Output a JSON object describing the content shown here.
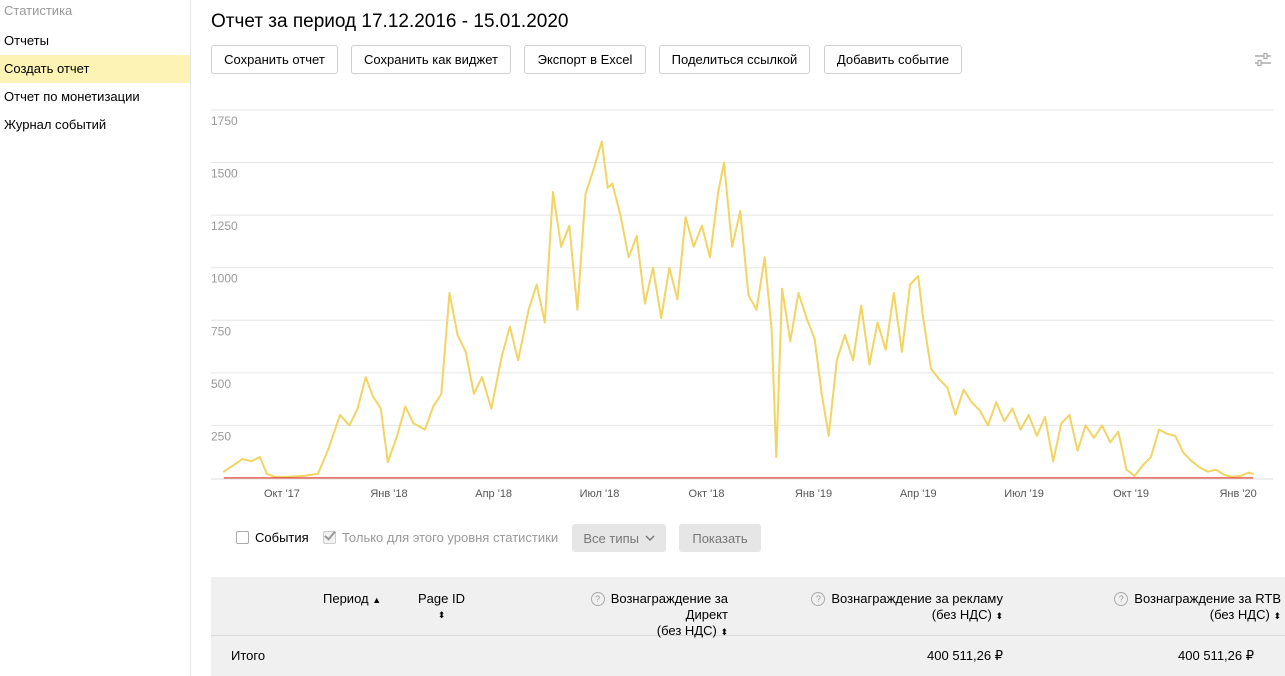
{
  "sidebar": {
    "title": "Статистика",
    "items": [
      {
        "label": "Отчеты",
        "active": false
      },
      {
        "label": "Создать отчет",
        "active": true
      },
      {
        "label": "Отчет по монетизации",
        "active": false
      },
      {
        "label": "Журнал событий",
        "active": false
      }
    ]
  },
  "page": {
    "title": "Отчет за период 17.12.2016 - 15.01.2020"
  },
  "toolbar": {
    "buttons": [
      "Сохранить отчет",
      "Сохранить как виджет",
      "Экспорт в Excel",
      "Поделиться ссылкой",
      "Добавить событие"
    ],
    "settings_icon": "sliders-icon"
  },
  "chart_data": {
    "type": "line",
    "title": "",
    "xlabel": "",
    "ylabel": "",
    "ylim": [
      0,
      1750
    ],
    "yticks": [
      250,
      500,
      750,
      1000,
      1250,
      1500,
      1750
    ],
    "xlim": [
      "2017-08-01",
      "2020-01-31"
    ],
    "xticks": [
      {
        "label": "Окт '17",
        "date": "2017-10-01"
      },
      {
        "label": "Янв '18",
        "date": "2018-01-01"
      },
      {
        "label": "Апр '18",
        "date": "2018-04-01"
      },
      {
        "label": "Июл '18",
        "date": "2018-07-01"
      },
      {
        "label": "Окт '18",
        "date": "2018-10-01"
      },
      {
        "label": "Янв '19",
        "date": "2019-01-01"
      },
      {
        "label": "Апр '19",
        "date": "2019-04-01"
      },
      {
        "label": "Июл '19",
        "date": "2019-07-01"
      },
      {
        "label": "Окт '19",
        "date": "2019-10-01"
      },
      {
        "label": "Янв '20",
        "date": "2020-01-01"
      }
    ],
    "grid": true,
    "colors": {
      "line": "#f2d463",
      "baseline": "#e34b3c",
      "grid": "#e5e5e5"
    },
    "series": [
      {
        "points": [
          [
            "2017-08-12",
            30
          ],
          [
            "2017-08-20",
            60
          ],
          [
            "2017-08-28",
            90
          ],
          [
            "2017-09-05",
            80
          ],
          [
            "2017-09-12",
            100
          ],
          [
            "2017-09-18",
            20
          ],
          [
            "2017-09-25",
            5
          ],
          [
            "2017-10-05",
            5
          ],
          [
            "2017-10-20",
            10
          ],
          [
            "2017-11-01",
            20
          ],
          [
            "2017-11-10",
            140
          ],
          [
            "2017-11-20",
            300
          ],
          [
            "2017-11-28",
            250
          ],
          [
            "2017-12-05",
            330
          ],
          [
            "2017-12-12",
            480
          ],
          [
            "2017-12-18",
            390
          ],
          [
            "2017-12-25",
            330
          ],
          [
            "2017-12-31",
            75
          ],
          [
            "2018-01-08",
            200
          ],
          [
            "2018-01-15",
            340
          ],
          [
            "2018-01-22",
            260
          ],
          [
            "2018-02-01",
            230
          ],
          [
            "2018-02-08",
            340
          ],
          [
            "2018-02-15",
            400
          ],
          [
            "2018-02-22",
            880
          ],
          [
            "2018-03-01",
            680
          ],
          [
            "2018-03-08",
            600
          ],
          [
            "2018-03-15",
            400
          ],
          [
            "2018-03-22",
            480
          ],
          [
            "2018-03-30",
            330
          ],
          [
            "2018-04-08",
            580
          ],
          [
            "2018-04-15",
            720
          ],
          [
            "2018-04-22",
            560
          ],
          [
            "2018-05-01",
            800
          ],
          [
            "2018-05-08",
            920
          ],
          [
            "2018-05-15",
            740
          ],
          [
            "2018-05-22",
            1360
          ],
          [
            "2018-05-29",
            1100
          ],
          [
            "2018-06-05",
            1200
          ],
          [
            "2018-06-12",
            800
          ],
          [
            "2018-06-19",
            1350
          ],
          [
            "2018-06-26",
            1470
          ],
          [
            "2018-07-03",
            1600
          ],
          [
            "2018-07-08",
            1380
          ],
          [
            "2018-07-12",
            1400
          ],
          [
            "2018-07-19",
            1250
          ],
          [
            "2018-07-26",
            1050
          ],
          [
            "2018-08-02",
            1150
          ],
          [
            "2018-08-09",
            830
          ],
          [
            "2018-08-16",
            1000
          ],
          [
            "2018-08-23",
            760
          ],
          [
            "2018-08-30",
            1000
          ],
          [
            "2018-09-06",
            850
          ],
          [
            "2018-09-13",
            1240
          ],
          [
            "2018-09-20",
            1100
          ],
          [
            "2018-09-27",
            1200
          ],
          [
            "2018-10-04",
            1050
          ],
          [
            "2018-10-11",
            1360
          ],
          [
            "2018-10-16",
            1500
          ],
          [
            "2018-10-23",
            1100
          ],
          [
            "2018-10-30",
            1270
          ],
          [
            "2018-11-06",
            870
          ],
          [
            "2018-11-13",
            800
          ],
          [
            "2018-11-20",
            1050
          ],
          [
            "2018-11-26",
            700
          ],
          [
            "2018-11-30",
            100
          ],
          [
            "2018-12-05",
            900
          ],
          [
            "2018-12-12",
            650
          ],
          [
            "2018-12-19",
            880
          ],
          [
            "2018-12-26",
            760
          ],
          [
            "2019-01-02",
            660
          ],
          [
            "2019-01-08",
            400
          ],
          [
            "2019-01-14",
            200
          ],
          [
            "2019-01-21",
            560
          ],
          [
            "2019-01-28",
            680
          ],
          [
            "2019-02-04",
            560
          ],
          [
            "2019-02-11",
            820
          ],
          [
            "2019-02-18",
            540
          ],
          [
            "2019-02-25",
            740
          ],
          [
            "2019-03-04",
            610
          ],
          [
            "2019-03-11",
            880
          ],
          [
            "2019-03-18",
            600
          ],
          [
            "2019-03-25",
            920
          ],
          [
            "2019-04-01",
            960
          ],
          [
            "2019-04-05",
            770
          ],
          [
            "2019-04-12",
            520
          ],
          [
            "2019-04-19",
            470
          ],
          [
            "2019-04-26",
            430
          ],
          [
            "2019-05-03",
            300
          ],
          [
            "2019-05-10",
            420
          ],
          [
            "2019-05-17",
            360
          ],
          [
            "2019-05-24",
            320
          ],
          [
            "2019-05-31",
            250
          ],
          [
            "2019-06-07",
            360
          ],
          [
            "2019-06-14",
            270
          ],
          [
            "2019-06-21",
            330
          ],
          [
            "2019-06-28",
            230
          ],
          [
            "2019-07-05",
            300
          ],
          [
            "2019-07-12",
            200
          ],
          [
            "2019-07-19",
            290
          ],
          [
            "2019-07-26",
            80
          ],
          [
            "2019-08-02",
            260
          ],
          [
            "2019-08-09",
            300
          ],
          [
            "2019-08-16",
            130
          ],
          [
            "2019-08-23",
            250
          ],
          [
            "2019-08-30",
            190
          ],
          [
            "2019-09-06",
            250
          ],
          [
            "2019-09-13",
            170
          ],
          [
            "2019-09-20",
            220
          ],
          [
            "2019-09-27",
            40
          ],
          [
            "2019-10-04",
            10
          ],
          [
            "2019-10-11",
            60
          ],
          [
            "2019-10-18",
            100
          ],
          [
            "2019-10-25",
            230
          ],
          [
            "2019-11-01",
            210
          ],
          [
            "2019-11-08",
            200
          ],
          [
            "2019-11-15",
            120
          ],
          [
            "2019-11-22",
            80
          ],
          [
            "2019-11-29",
            50
          ],
          [
            "2019-12-06",
            30
          ],
          [
            "2019-12-13",
            40
          ],
          [
            "2019-12-20",
            15
          ],
          [
            "2019-12-27",
            5
          ],
          [
            "2020-01-03",
            10
          ],
          [
            "2020-01-10",
            25
          ],
          [
            "2020-01-14",
            20
          ]
        ]
      }
    ]
  },
  "filters": {
    "events_label": "События",
    "events_checked": false,
    "level_label": "Только для этого уровня статистики",
    "level_checked": true,
    "types_select": "Все типы",
    "show_button": "Показать"
  },
  "table": {
    "headers": {
      "period": "Период",
      "page_id": "Page ID",
      "direct_l1": "Вознаграждение за Директ",
      "direct_l2": "(без НДС)",
      "ads_l1": "Вознаграждение за рекламу",
      "ads_l2": "(без НДС)",
      "rtb_l1": "Вознаграждение за RTB",
      "rtb_l2": "(без НДС)"
    },
    "total": {
      "label": "Итого",
      "ads": "400 511,26 ₽",
      "rtb": "400 511,26 ₽"
    }
  }
}
